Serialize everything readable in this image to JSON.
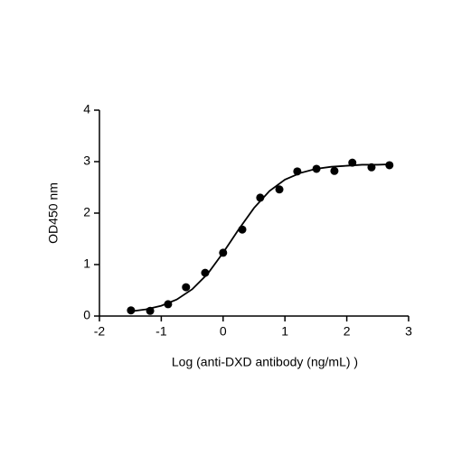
{
  "chart_data": {
    "type": "scatter",
    "x_label": "Log (anti-DXD antibody (ng/mL) )",
    "y_label": "OD450 nm",
    "x": [
      -1.49,
      -1.18,
      -0.89,
      -0.6,
      -0.29,
      0.0,
      0.31,
      0.6,
      0.91,
      1.2,
      1.51,
      1.8,
      2.09,
      2.4,
      2.69
    ],
    "values": [
      0.11,
      0.1,
      0.23,
      0.56,
      0.84,
      1.23,
      1.68,
      2.3,
      2.46,
      2.81,
      2.86,
      2.82,
      2.98,
      2.89,
      2.93
    ],
    "color": "#000000",
    "curve": {
      "x": [
        -1.5,
        -1.25,
        -1.0,
        -0.75,
        -0.5,
        -0.25,
        0,
        0.25,
        0.5,
        0.75,
        1.0,
        1.25,
        1.5,
        1.75,
        2.0,
        2.25,
        2.5,
        2.75
      ],
      "values": [
        0.09,
        0.13,
        0.2,
        0.32,
        0.52,
        0.82,
        1.23,
        1.68,
        2.1,
        2.43,
        2.65,
        2.78,
        2.86,
        2.9,
        2.92,
        2.94,
        2.94,
        2.95
      ]
    },
    "xlim": [
      -2,
      3
    ],
    "xticks": [
      -2,
      -1,
      0,
      1,
      2,
      3
    ],
    "ylim": [
      0,
      4
    ],
    "yticks": [
      0,
      1,
      2,
      3,
      4
    ],
    "grid": false
  }
}
